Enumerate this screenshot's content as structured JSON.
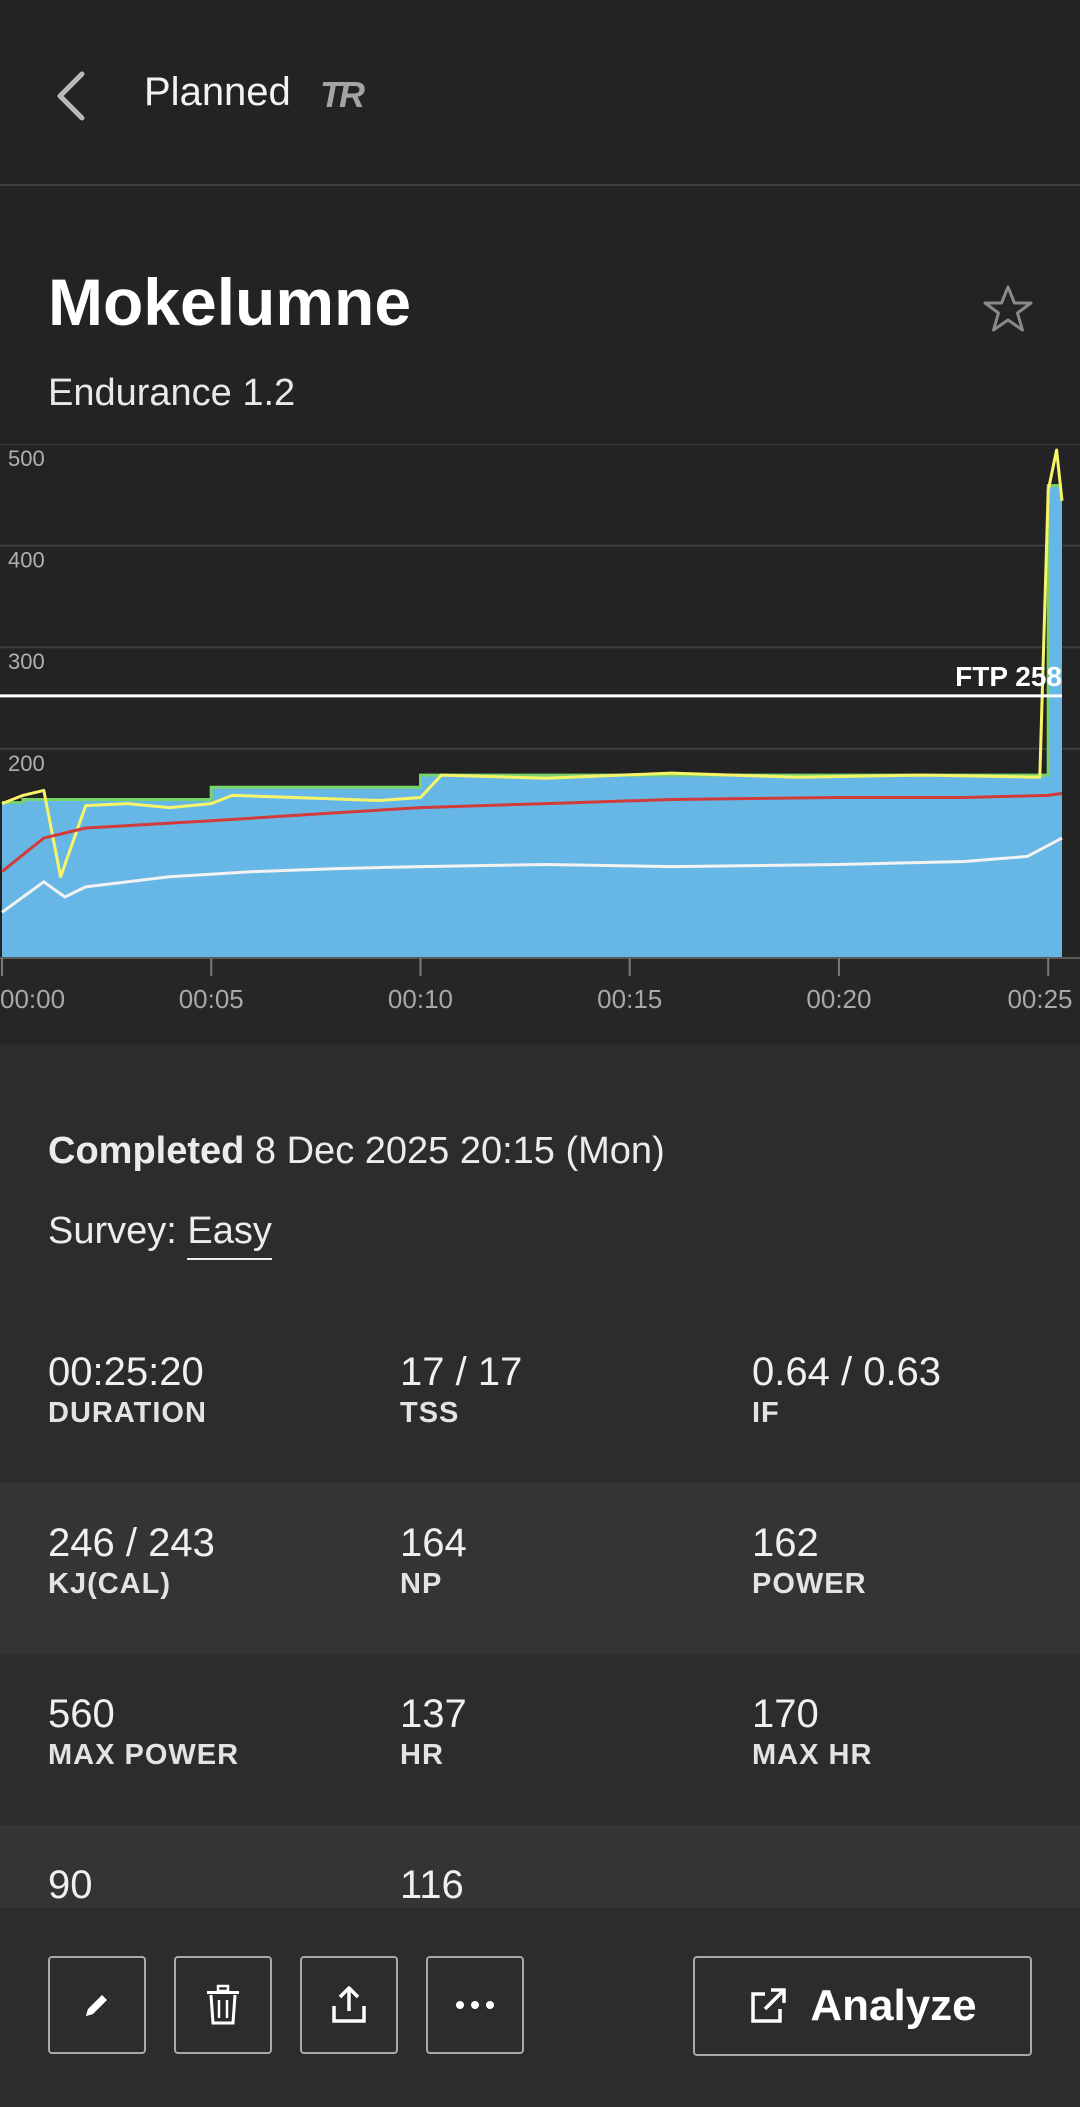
{
  "header": {
    "title": "Planned",
    "logo_text": "TR",
    "back_icon": "chevron-left-icon"
  },
  "workout": {
    "title": "Mokelumne",
    "subtitle": "Endurance 1.2",
    "favorite_icon": "star-outline-icon"
  },
  "chart_data": {
    "type": "area",
    "title": "",
    "xlabel": "",
    "ylabel": "",
    "x_ticks": [
      "00:00",
      "00:05",
      "00:10",
      "00:15",
      "00:20",
      "00:25"
    ],
    "y_ticks": [
      200,
      300,
      400,
      500
    ],
    "xlim": [
      0,
      25.33
    ],
    "ylim": [
      0,
      500
    ],
    "grid": true,
    "ftp": {
      "label": "FTP 258",
      "value": 258
    },
    "series": [
      {
        "color": "#67b7e6",
        "x": [
          0,
          0.5,
          0.5,
          5,
          5,
          10,
          10,
          25,
          25,
          25.33
        ],
        "y": [
          153,
          153,
          156,
          156,
          168,
          168,
          180,
          180,
          465,
          465
        ]
      },
      {
        "color": "#f7f567",
        "x": [
          0,
          0.5,
          1,
          1.4,
          2,
          3,
          4,
          5,
          5.5,
          7,
          9,
          10,
          10.5,
          13,
          16,
          19,
          22,
          24.8,
          25,
          25.2,
          25.33
        ],
        "y": [
          152,
          160,
          165,
          80,
          150,
          152,
          148,
          152,
          160,
          158,
          155,
          158,
          180,
          177,
          182,
          178,
          180,
          178,
          460,
          500,
          450
        ]
      },
      {
        "color": "#d33a3a",
        "x": [
          0,
          1,
          2,
          5,
          8,
          10,
          13,
          16,
          20,
          23,
          25,
          25.33
        ],
        "y": [
          85,
          118,
          128,
          135,
          143,
          148,
          152,
          156,
          158,
          158,
          160,
          162
        ]
      },
      {
        "color": "#f2f2f2",
        "x": [
          0,
          1,
          1.5,
          2,
          4,
          6,
          8,
          10,
          13,
          16,
          20,
          23,
          24.5,
          25.33
        ],
        "y": [
          45,
          75,
          60,
          70,
          80,
          85,
          88,
          90,
          92,
          90,
          92,
          95,
          100,
          118
        ]
      }
    ]
  },
  "completion": {
    "label": "Completed",
    "datetime": "8 Dec 2025 20:15 (Mon)"
  },
  "survey": {
    "label": "Survey:",
    "value": "Easy"
  },
  "stats": [
    [
      {
        "value": "00:25:20",
        "label": "DURATION"
      },
      {
        "value": "17 / 17",
        "label": "TSS"
      },
      {
        "value": "0.64 / 0.63",
        "label": "IF"
      }
    ],
    [
      {
        "value": "246 / 243",
        "label": "KJ(CAL)"
      },
      {
        "value": "164",
        "label": "NP"
      },
      {
        "value": "162",
        "label": "POWER"
      }
    ],
    [
      {
        "value": "560",
        "label": "MAX POWER"
      },
      {
        "value": "137",
        "label": "HR"
      },
      {
        "value": "170",
        "label": "MAX HR"
      }
    ],
    [
      {
        "value": "90",
        "label": ""
      },
      {
        "value": "116",
        "label": ""
      },
      {
        "value": "",
        "label": ""
      }
    ]
  ],
  "toolbar": {
    "edit_icon": "pencil-icon",
    "delete_icon": "trash-icon",
    "share_icon": "share-icon",
    "more_icon": "more-horizontal-icon",
    "analyze_label": "Analyze",
    "analyze_icon": "external-link-icon"
  },
  "colors": {
    "background": "#2c2c2c",
    "header_bg": "#232323",
    "power_fill": "#67b7e6",
    "power_line": "#f7f567",
    "hr_line": "#d33a3a",
    "cadence_line": "#f2f2f2"
  }
}
